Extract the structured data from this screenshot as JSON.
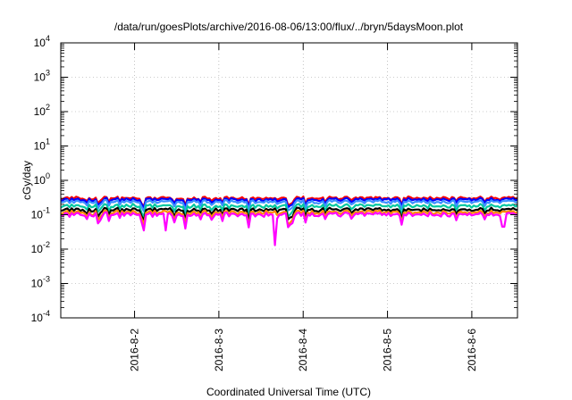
{
  "chart_data": {
    "type": "line",
    "title": "/data/run/goesPlots/archive/2016-08-06/13:00/flux/../bryn/5daysMoon.plot",
    "xlabel": "Coordinated Universal Time (UTC)",
    "ylabel": "cGy/day",
    "yscale": "log",
    "ylim": [
      0.0001,
      10000
    ],
    "xlim": [
      "2016-08-01 03:00",
      "2016-08-06 13:00"
    ],
    "y_ticks": [
      {
        "base": "10",
        "exp": "-4",
        "value": 0.0001
      },
      {
        "base": "10",
        "exp": "-3",
        "value": 0.001
      },
      {
        "base": "10",
        "exp": "-2",
        "value": 0.01
      },
      {
        "base": "10",
        "exp": "-1",
        "value": 0.1
      },
      {
        "base": "10",
        "exp": "0",
        "value": 1
      },
      {
        "base": "10",
        "exp": "1",
        "value": 10
      },
      {
        "base": "10",
        "exp": "2",
        "value": 100
      },
      {
        "base": "10",
        "exp": "3",
        "value": 1000
      },
      {
        "base": "10",
        "exp": "4",
        "value": 10000
      }
    ],
    "x_ticks": [
      {
        "label": "2016-8-2",
        "value": "2016-08-02 00:00"
      },
      {
        "label": "2016-8-3",
        "value": "2016-08-03 00:00"
      },
      {
        "label": "2016-8-4",
        "value": "2016-08-04 00:00"
      },
      {
        "label": "2016-8-5",
        "value": "2016-08-05 00:00"
      },
      {
        "label": "2016-8-6",
        "value": "2016-08-06 00:00"
      }
    ],
    "grid": true,
    "legend": "none",
    "series": [
      {
        "color": "#ff0000",
        "baseline": 0.33,
        "dip_depth": 0.45
      },
      {
        "color": "#0000ff",
        "baseline": 0.3,
        "dip_depth": 0.45
      },
      {
        "color": "#3a90ff",
        "baseline": 0.26,
        "dip_depth": 0.5
      },
      {
        "color": "#00c8a0",
        "baseline": 0.2,
        "dip_depth": 0.55
      },
      {
        "color": "#000000",
        "baseline": 0.155,
        "dip_depth": 0.55
      },
      {
        "color": "#ff8c00",
        "baseline": 0.13,
        "dip_depth": 0.6
      },
      {
        "color": "#ff00ff",
        "baseline": 0.115,
        "dip_depth": 0.65,
        "spikes": [
          {
            "x": "2016-08-02 09:00",
            "value": 0.035
          },
          {
            "x": "2016-08-03 16:00",
            "value": 0.013
          },
          {
            "x": "2016-08-06 09:00",
            "value": 0.045
          }
        ]
      }
    ]
  }
}
